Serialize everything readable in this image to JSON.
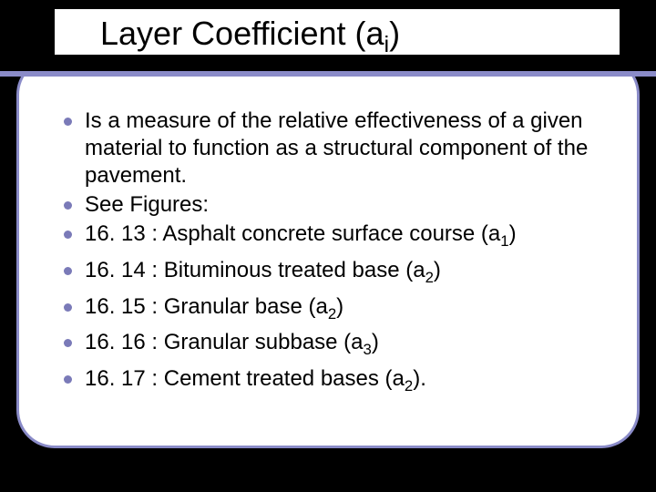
{
  "slide": {
    "title_prefix": "Layer Coefficient (a",
    "title_sub": "i",
    "title_suffix": ")",
    "accent_color": "#8a8bc8",
    "bullet_color": "#7a7ab8",
    "bullets": [
      {
        "text": "Is a measure of the relative effectiveness of a given material to function as a structural component of the pavement."
      },
      {
        "text": "See Figures:"
      },
      {
        "text": "16. 13 : Asphalt concrete surface course (a",
        "sub": "1",
        "suffix": ")"
      },
      {
        "text": "16. 14 : Bituminous treated base (a",
        "sub": "2",
        "suffix": ")"
      },
      {
        "text": "16. 15 : Granular base (a",
        "sub": "2",
        "suffix": ")"
      },
      {
        "text": "16. 16 : Granular subbase (a",
        "sub": "3",
        "suffix": ")"
      },
      {
        "text": "16. 17 : Cement treated bases (a",
        "sub": "2",
        "suffix": ")."
      }
    ]
  }
}
